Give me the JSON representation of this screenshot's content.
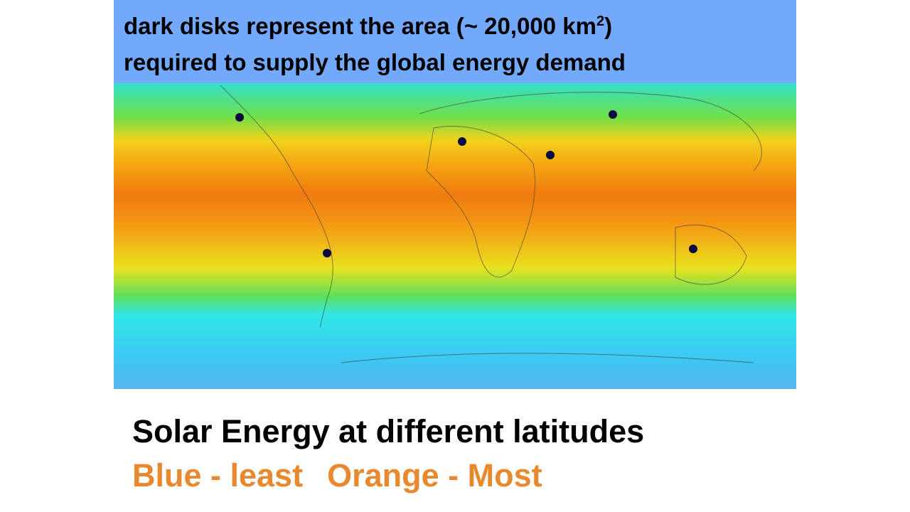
{
  "header": {
    "line1": "dark disks represent the area (~ 20,000 km",
    "superscript": "2",
    "line1_end": ")",
    "line2": "required to supply the global energy demand"
  },
  "caption": {
    "title": "Solar Energy at different latitudes",
    "least": "Blue - least",
    "most": "Orange - Most"
  }
}
